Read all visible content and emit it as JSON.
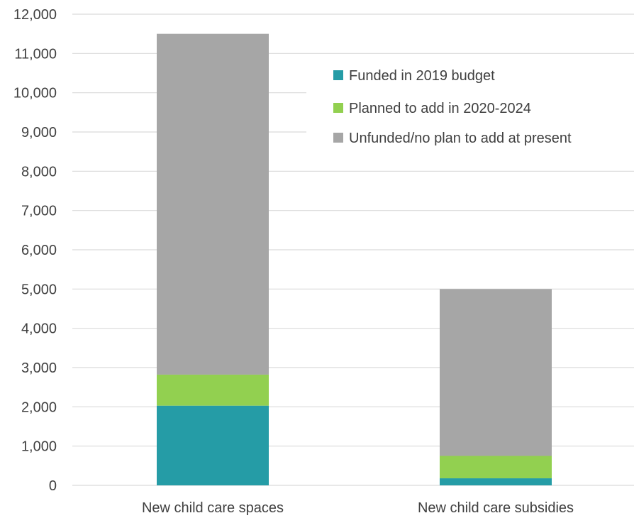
{
  "chart_data": {
    "type": "bar",
    "stacked": true,
    "categories": [
      "New child care spaces",
      "New child care subsidies"
    ],
    "series": [
      {
        "name": "Funded in 2019 budget",
        "values": [
          2030,
          180
        ],
        "color": "#259ca6"
      },
      {
        "name": "Planned to add in 2020-2024",
        "values": [
          790,
          570
        ],
        "color": "#92d050"
      },
      {
        "name": "Unfunded/no plan to add at present",
        "values": [
          8680,
          4250
        ],
        "color": "#a6a6a6"
      }
    ],
    "ylim": [
      0,
      12000
    ],
    "yticks": [
      0,
      1000,
      2000,
      3000,
      4000,
      5000,
      6000,
      7000,
      8000,
      9000,
      10000,
      11000,
      12000
    ],
    "ytick_labels": [
      "0",
      "1,000",
      "2,000",
      "3,000",
      "4,000",
      "5,000",
      "6,000",
      "7,000",
      "8,000",
      "9,000",
      "10,000",
      "11,000",
      "12,000"
    ],
    "grid": true,
    "legend_position": "top-right",
    "title": "",
    "xlabel": "",
    "ylabel": ""
  }
}
